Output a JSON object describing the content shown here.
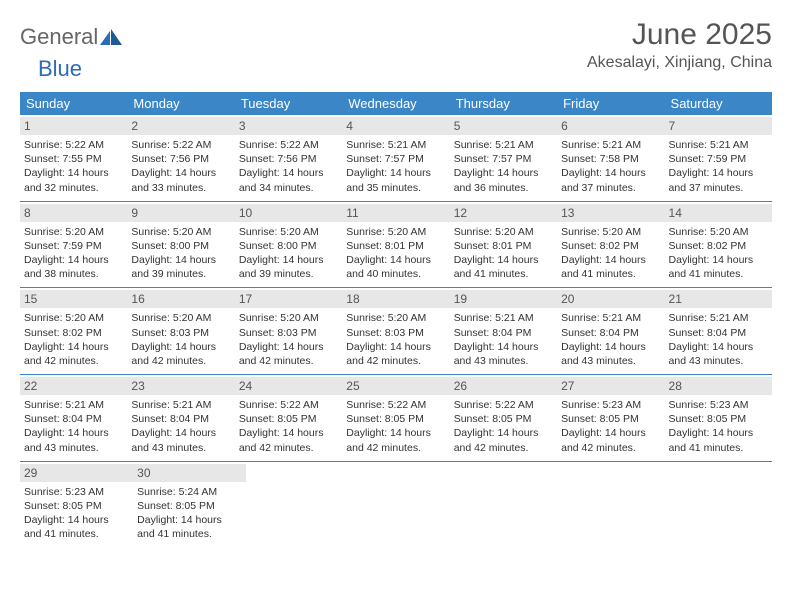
{
  "logo": {
    "part1": "General",
    "part2": "Blue"
  },
  "title": "June 2025",
  "location": "Akesalayi, Xinjiang, China",
  "colors": {
    "header_bg": "#3b86c7",
    "daynum_bg": "#e7e7e7",
    "text": "#333",
    "title": "#555"
  },
  "dow": [
    "Sunday",
    "Monday",
    "Tuesday",
    "Wednesday",
    "Thursday",
    "Friday",
    "Saturday"
  ],
  "days": [
    {
      "n": "1",
      "sr": "Sunrise: 5:22 AM",
      "ss": "Sunset: 7:55 PM",
      "d1": "Daylight: 14 hours",
      "d2": "and 32 minutes."
    },
    {
      "n": "2",
      "sr": "Sunrise: 5:22 AM",
      "ss": "Sunset: 7:56 PM",
      "d1": "Daylight: 14 hours",
      "d2": "and 33 minutes."
    },
    {
      "n": "3",
      "sr": "Sunrise: 5:22 AM",
      "ss": "Sunset: 7:56 PM",
      "d1": "Daylight: 14 hours",
      "d2": "and 34 minutes."
    },
    {
      "n": "4",
      "sr": "Sunrise: 5:21 AM",
      "ss": "Sunset: 7:57 PM",
      "d1": "Daylight: 14 hours",
      "d2": "and 35 minutes."
    },
    {
      "n": "5",
      "sr": "Sunrise: 5:21 AM",
      "ss": "Sunset: 7:57 PM",
      "d1": "Daylight: 14 hours",
      "d2": "and 36 minutes."
    },
    {
      "n": "6",
      "sr": "Sunrise: 5:21 AM",
      "ss": "Sunset: 7:58 PM",
      "d1": "Daylight: 14 hours",
      "d2": "and 37 minutes."
    },
    {
      "n": "7",
      "sr": "Sunrise: 5:21 AM",
      "ss": "Sunset: 7:59 PM",
      "d1": "Daylight: 14 hours",
      "d2": "and 37 minutes."
    },
    {
      "n": "8",
      "sr": "Sunrise: 5:20 AM",
      "ss": "Sunset: 7:59 PM",
      "d1": "Daylight: 14 hours",
      "d2": "and 38 minutes."
    },
    {
      "n": "9",
      "sr": "Sunrise: 5:20 AM",
      "ss": "Sunset: 8:00 PM",
      "d1": "Daylight: 14 hours",
      "d2": "and 39 minutes."
    },
    {
      "n": "10",
      "sr": "Sunrise: 5:20 AM",
      "ss": "Sunset: 8:00 PM",
      "d1": "Daylight: 14 hours",
      "d2": "and 39 minutes."
    },
    {
      "n": "11",
      "sr": "Sunrise: 5:20 AM",
      "ss": "Sunset: 8:01 PM",
      "d1": "Daylight: 14 hours",
      "d2": "and 40 minutes."
    },
    {
      "n": "12",
      "sr": "Sunrise: 5:20 AM",
      "ss": "Sunset: 8:01 PM",
      "d1": "Daylight: 14 hours",
      "d2": "and 41 minutes."
    },
    {
      "n": "13",
      "sr": "Sunrise: 5:20 AM",
      "ss": "Sunset: 8:02 PM",
      "d1": "Daylight: 14 hours",
      "d2": "and 41 minutes."
    },
    {
      "n": "14",
      "sr": "Sunrise: 5:20 AM",
      "ss": "Sunset: 8:02 PM",
      "d1": "Daylight: 14 hours",
      "d2": "and 41 minutes."
    },
    {
      "n": "15",
      "sr": "Sunrise: 5:20 AM",
      "ss": "Sunset: 8:02 PM",
      "d1": "Daylight: 14 hours",
      "d2": "and 42 minutes."
    },
    {
      "n": "16",
      "sr": "Sunrise: 5:20 AM",
      "ss": "Sunset: 8:03 PM",
      "d1": "Daylight: 14 hours",
      "d2": "and 42 minutes."
    },
    {
      "n": "17",
      "sr": "Sunrise: 5:20 AM",
      "ss": "Sunset: 8:03 PM",
      "d1": "Daylight: 14 hours",
      "d2": "and 42 minutes."
    },
    {
      "n": "18",
      "sr": "Sunrise: 5:20 AM",
      "ss": "Sunset: 8:03 PM",
      "d1": "Daylight: 14 hours",
      "d2": "and 42 minutes."
    },
    {
      "n": "19",
      "sr": "Sunrise: 5:21 AM",
      "ss": "Sunset: 8:04 PM",
      "d1": "Daylight: 14 hours",
      "d2": "and 43 minutes."
    },
    {
      "n": "20",
      "sr": "Sunrise: 5:21 AM",
      "ss": "Sunset: 8:04 PM",
      "d1": "Daylight: 14 hours",
      "d2": "and 43 minutes."
    },
    {
      "n": "21",
      "sr": "Sunrise: 5:21 AM",
      "ss": "Sunset: 8:04 PM",
      "d1": "Daylight: 14 hours",
      "d2": "and 43 minutes."
    },
    {
      "n": "22",
      "sr": "Sunrise: 5:21 AM",
      "ss": "Sunset: 8:04 PM",
      "d1": "Daylight: 14 hours",
      "d2": "and 43 minutes."
    },
    {
      "n": "23",
      "sr": "Sunrise: 5:21 AM",
      "ss": "Sunset: 8:04 PM",
      "d1": "Daylight: 14 hours",
      "d2": "and 43 minutes."
    },
    {
      "n": "24",
      "sr": "Sunrise: 5:22 AM",
      "ss": "Sunset: 8:05 PM",
      "d1": "Daylight: 14 hours",
      "d2": "and 42 minutes."
    },
    {
      "n": "25",
      "sr": "Sunrise: 5:22 AM",
      "ss": "Sunset: 8:05 PM",
      "d1": "Daylight: 14 hours",
      "d2": "and 42 minutes."
    },
    {
      "n": "26",
      "sr": "Sunrise: 5:22 AM",
      "ss": "Sunset: 8:05 PM",
      "d1": "Daylight: 14 hours",
      "d2": "and 42 minutes."
    },
    {
      "n": "27",
      "sr": "Sunrise: 5:23 AM",
      "ss": "Sunset: 8:05 PM",
      "d1": "Daylight: 14 hours",
      "d2": "and 42 minutes."
    },
    {
      "n": "28",
      "sr": "Sunrise: 5:23 AM",
      "ss": "Sunset: 8:05 PM",
      "d1": "Daylight: 14 hours",
      "d2": "and 41 minutes."
    },
    {
      "n": "29",
      "sr": "Sunrise: 5:23 AM",
      "ss": "Sunset: 8:05 PM",
      "d1": "Daylight: 14 hours",
      "d2": "and 41 minutes."
    },
    {
      "n": "30",
      "sr": "Sunrise: 5:24 AM",
      "ss": "Sunset: 8:05 PM",
      "d1": "Daylight: 14 hours",
      "d2": "and 41 minutes."
    }
  ]
}
